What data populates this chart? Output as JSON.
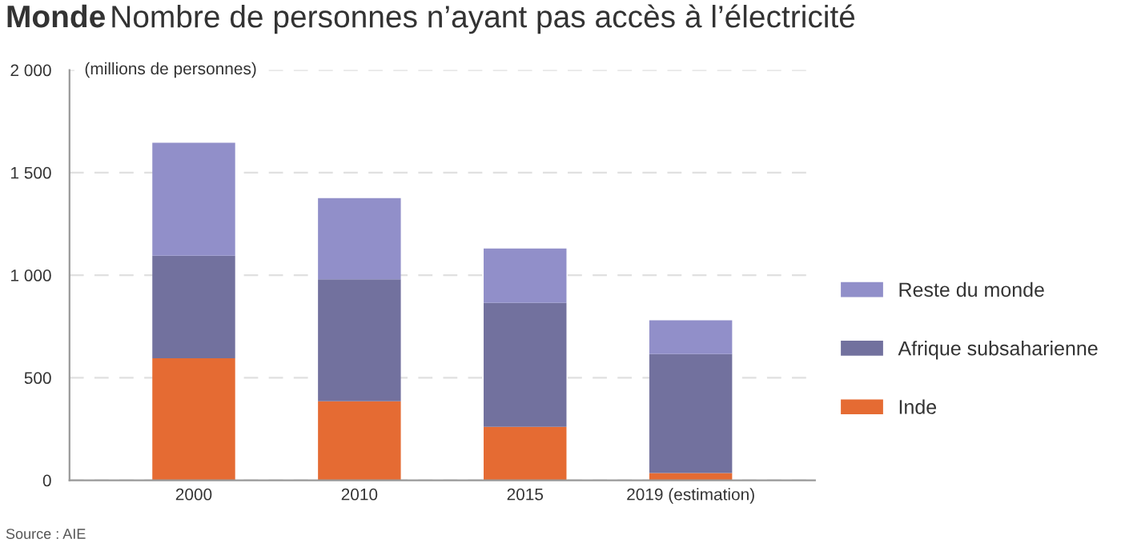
{
  "chart_data": {
    "type": "bar",
    "title": "Monde",
    "subtitle": "Nombre de personnes n’ayant pas accès à l’électricité",
    "ylabel": "(millions de personnes)",
    "annotations": [
      "Source : AIE"
    ],
    "categories": [
      "2000",
      "2010",
      "2015",
      "2019 (estimation)"
    ],
    "stacked": true,
    "series": [
      {
        "name": "Inde",
        "color": "#e56b33",
        "values": [
          595,
          385,
          260,
          35
        ]
      },
      {
        "name": "Afrique subsaharienne",
        "color": "#72719e",
        "values": [
          500,
          595,
          605,
          580
        ]
      },
      {
        "name": "Reste du monde",
        "color": "#918fc9",
        "values": [
          550,
          395,
          265,
          165
        ]
      }
    ],
    "ylim": [
      0,
      2000
    ],
    "yticks": [
      0,
      500,
      {
        "value": 1000,
        "label": "1 000"
      },
      {
        "value": 1500,
        "label": "1 500"
      },
      {
        "value": 2000,
        "label": "2 000"
      }
    ],
    "grid": "y",
    "legend": "right"
  }
}
